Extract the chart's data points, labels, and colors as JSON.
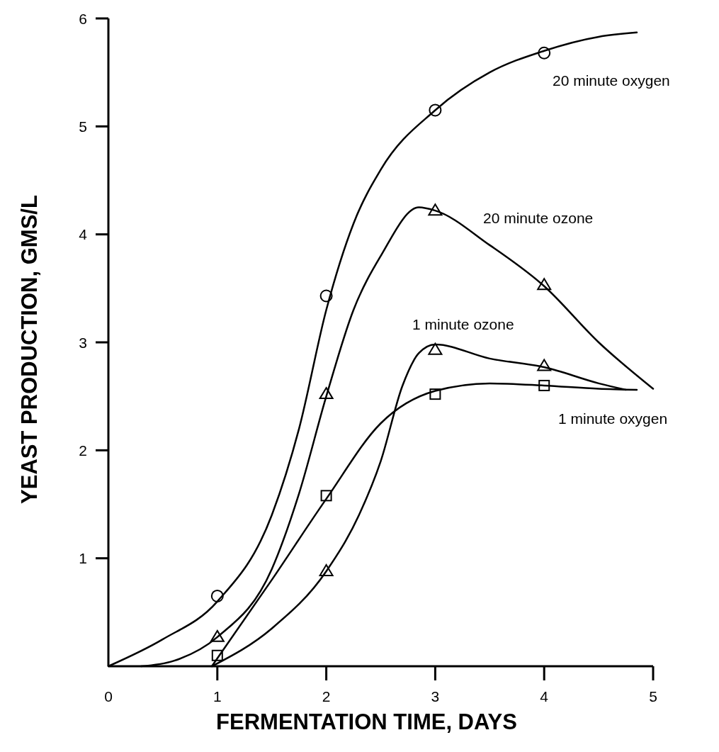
{
  "chart_data": {
    "type": "line",
    "xlabel": "FERMENTATION TIME, DAYS",
    "ylabel": "YEAST PRODUCTION, GMS/L",
    "xlim": [
      0,
      5
    ],
    "ylim": [
      0,
      6
    ],
    "xticks": [
      0,
      1,
      2,
      3,
      4,
      5
    ],
    "yticks": [
      1,
      2,
      3,
      4,
      5,
      6
    ],
    "grid": false,
    "series": [
      {
        "name": "20 minute oxygen",
        "color": "#000000",
        "marker": "none",
        "x": [
          0,
          0.5,
          1,
          1.5,
          1.75,
          2,
          2.25,
          2.5,
          3,
          3.5,
          4,
          4.5,
          4.85
        ],
        "values": [
          0,
          0.25,
          0.6,
          1.4,
          2.2,
          3.3,
          4.1,
          4.6,
          5.15,
          5.5,
          5.7,
          5.83,
          5.87
        ]
      },
      {
        "name": "20 minute ozone",
        "color": "#000000",
        "marker": "none",
        "x": [
          0.3,
          0.6,
          1,
          1.5,
          1.75,
          2,
          2.25,
          2.5,
          2.85,
          3,
          3.5,
          4,
          4.5,
          5
        ],
        "values": [
          0,
          0.05,
          0.27,
          0.9,
          1.6,
          2.5,
          3.3,
          3.8,
          4.25,
          4.22,
          3.9,
          3.52,
          3.0,
          2.57
        ]
      },
      {
        "name": "1 minute ozone",
        "color": "#000000",
        "marker": "none",
        "x": [
          0.95,
          1.5,
          2,
          2.3,
          2.5,
          2.7,
          2.85,
          3,
          3.5,
          4,
          4.5,
          4.75
        ],
        "values": [
          0,
          0.35,
          0.88,
          1.4,
          1.9,
          2.6,
          2.9,
          2.98,
          2.85,
          2.77,
          2.62,
          2.56
        ]
      },
      {
        "name": "1 minute oxygen",
        "color": "#000000",
        "marker": "none",
        "x": [
          0.95,
          1.5,
          2,
          2.5,
          3,
          3.5,
          4,
          4.5,
          4.85
        ],
        "values": [
          0,
          0.8,
          1.55,
          2.25,
          2.55,
          2.62,
          2.6,
          2.57,
          2.56
        ]
      },
      {
        "type": "scatter",
        "color": "#000000",
        "marker": "circle",
        "x": [
          1,
          2,
          3,
          4
        ],
        "values": [
          0.65,
          3.43,
          5.15,
          5.68
        ]
      },
      {
        "type": "scatter",
        "color": "#000000",
        "marker": "triangle",
        "x": [
          1,
          2,
          3,
          4
        ],
        "values": [
          0.27,
          2.52,
          4.22,
          3.53
        ]
      },
      {
        "type": "scatter",
        "color": "#000000",
        "marker": "triangle",
        "x": [
          2,
          3,
          4
        ],
        "values": [
          0.88,
          2.93,
          2.78
        ]
      },
      {
        "type": "scatter",
        "color": "#000000",
        "marker": "square",
        "x": [
          1,
          2,
          3,
          4
        ],
        "values": [
          0.1,
          1.58,
          2.52,
          2.6
        ]
      }
    ]
  }
}
